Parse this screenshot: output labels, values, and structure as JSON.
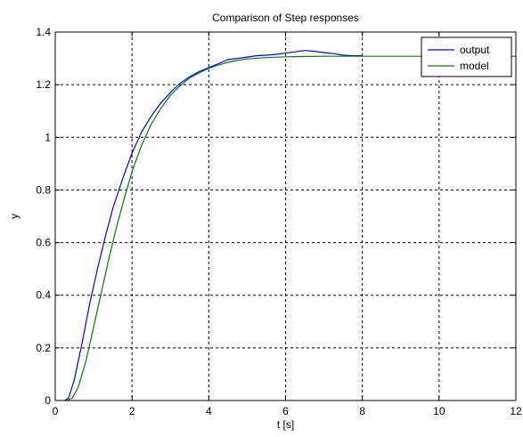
{
  "chart_data": {
    "type": "line",
    "title": "Comparison of Step responses",
    "xlabel": "t [s]",
    "ylabel": "y",
    "xlim": [
      0,
      12
    ],
    "ylim": [
      0,
      1.4
    ],
    "xticks": [
      0,
      2,
      4,
      6,
      8,
      10,
      12
    ],
    "yticks": [
      0,
      0.2,
      0.4,
      0.6,
      0.8,
      1,
      1.2,
      1.4
    ],
    "xtick_labels": [
      "0",
      "2",
      "4",
      "6",
      "8",
      "10",
      "12"
    ],
    "ytick_labels": [
      "0",
      "0.2",
      "0.4",
      "0.6",
      "0.8",
      "1",
      "1.2",
      "1.4"
    ],
    "grid": true,
    "legend_position": "top-right",
    "series": [
      {
        "name": "output",
        "color": "#0000ff",
        "x": [
          0.25,
          0.35,
          0.5,
          0.7,
          0.9,
          1.1,
          1.3,
          1.5,
          1.75,
          2.0,
          2.25,
          2.5,
          2.75,
          3.0,
          3.25,
          3.5,
          3.75,
          4.0,
          4.25,
          4.5,
          4.75,
          5.0,
          5.25,
          5.5,
          5.75,
          6.0,
          6.25,
          6.5,
          6.75,
          7.0,
          7.25,
          7.5,
          7.75,
          8.0
        ],
        "y": [
          0.0,
          0.01,
          0.08,
          0.22,
          0.37,
          0.5,
          0.62,
          0.73,
          0.84,
          0.94,
          1.02,
          1.08,
          1.13,
          1.17,
          1.205,
          1.23,
          1.25,
          1.265,
          1.28,
          1.295,
          1.3,
          1.305,
          1.31,
          1.312,
          1.315,
          1.32,
          1.325,
          1.33,
          1.327,
          1.322,
          1.318,
          1.312,
          1.31,
          1.31
        ]
      },
      {
        "name": "model",
        "color": "#008000",
        "x": [
          0.3,
          0.45,
          0.6,
          0.8,
          1.0,
          1.2,
          1.4,
          1.6,
          1.8,
          2.0,
          2.25,
          2.5,
          2.75,
          3.0,
          3.25,
          3.5,
          3.75,
          4.0,
          4.25,
          4.5,
          4.75,
          5.0,
          5.5,
          6.0,
          6.5,
          7.0,
          7.5,
          8.0,
          9.0,
          10.0,
          11.0,
          12.0
        ],
        "y": [
          0.0,
          0.01,
          0.05,
          0.15,
          0.28,
          0.41,
          0.54,
          0.66,
          0.77,
          0.87,
          0.97,
          1.05,
          1.11,
          1.16,
          1.195,
          1.225,
          1.245,
          1.262,
          1.275,
          1.285,
          1.292,
          1.298,
          1.303,
          1.306,
          1.307,
          1.308,
          1.308,
          1.308,
          1.308,
          1.308,
          1.308,
          1.308
        ]
      }
    ]
  }
}
